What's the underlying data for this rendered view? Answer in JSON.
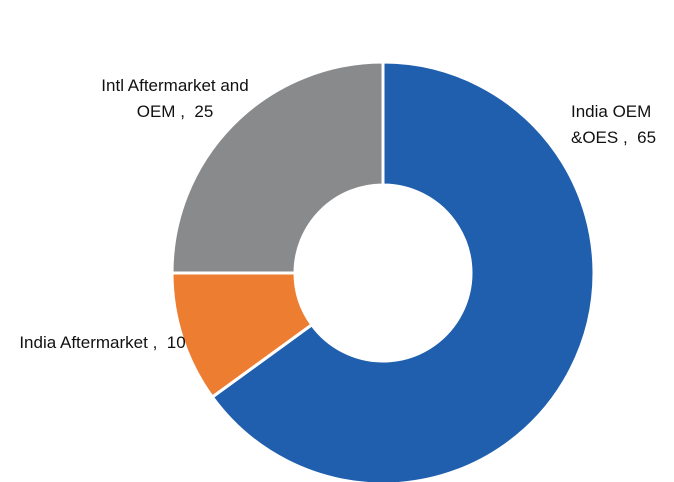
{
  "chart_data": {
    "type": "donut",
    "categories": [
      "India OEM &OES",
      "India Aftermarket",
      "Intl Aftermarket and OEM"
    ],
    "values": [
      65,
      10,
      25
    ],
    "colors": [
      "#1f5fae",
      "#ed7d31",
      "#898a8c"
    ],
    "label_separator": ",  "
  }
}
